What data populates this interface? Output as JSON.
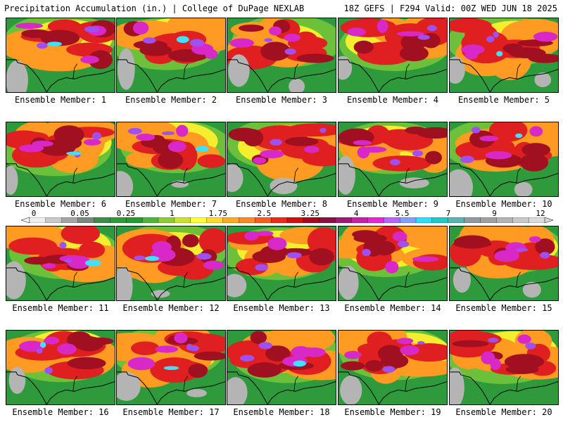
{
  "header": {
    "title_left": "Precipitation Accumulation (in.) | College of DuPage NEXLAB",
    "title_right": "18Z GEFS | F294 Valid: 00Z WED JUN 18 2025"
  },
  "panel_label_prefix": "Ensemble Member: ",
  "members": [
    1,
    2,
    3,
    4,
    5,
    6,
    7,
    8,
    9,
    10,
    11,
    12,
    13,
    14,
    15,
    16,
    17,
    18,
    19,
    20
  ],
  "colorbar": {
    "ticks": [
      "0",
      "0.05",
      "0.25",
      "1",
      "1.75",
      "2.5",
      "3.25",
      "4",
      "5.5",
      "7",
      "9",
      "12"
    ],
    "colors": [
      "#eeeeee",
      "#c8c8c8",
      "#a4a4a4",
      "#7a8a7a",
      "#3d8c4a",
      "#2e9a3b",
      "#229c2e",
      "#4fb53a",
      "#8ccd35",
      "#c8e22e",
      "#ffff33",
      "#ffd92e",
      "#ffaa22",
      "#ff8822",
      "#ff5a1e",
      "#f02818",
      "#d21010",
      "#a8081a",
      "#8a1040",
      "#a01a78",
      "#c81ea8",
      "#e626d2",
      "#b464ff",
      "#7fa0ff",
      "#30dcff",
      "#22c8c8",
      "#5ab4b4",
      "#8c9ca0",
      "#a0a0a0",
      "#b4b4b4",
      "#c8c8c8",
      "#dcdcdc"
    ],
    "under_color": "#f4f4f4",
    "over_color": "#d8d8d8"
  },
  "map_palette": {
    "land_green": "#2e9a3b",
    "light_green": "#6cc03a",
    "yellow": "#f4ee2e",
    "orange": "#ff9a22",
    "red": "#e02020",
    "dark_red": "#a01020",
    "magenta": "#d828c8",
    "purple": "#a050f0",
    "cyan": "#40e0ff",
    "gray": "#b4b4b4",
    "border": "#000000"
  }
}
